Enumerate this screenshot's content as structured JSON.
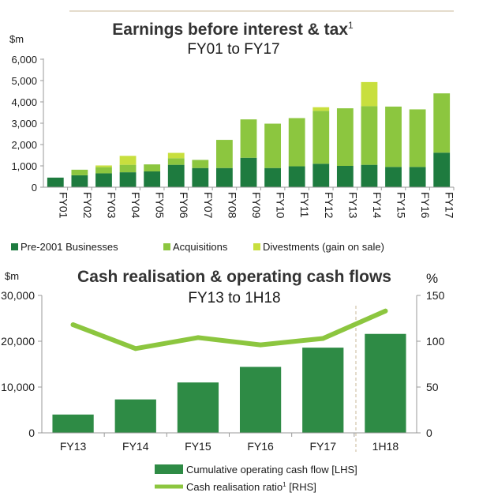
{
  "colors": {
    "pre2001": "#1e7b3f",
    "acquisitions": "#8cc63f",
    "divestments": "#c8df3e",
    "cash_bar": "#2e8b45",
    "ratio_line": "#8cc63f",
    "axis": "#999999",
    "divider": "#c8b89a"
  },
  "chart_data": [
    {
      "type": "bar",
      "stacked": true,
      "title": "Earnings before interest & tax",
      "title_superscript": "1",
      "subtitle": "FY01 to FY17",
      "ylabel": "$m",
      "ylim": [
        0,
        6000
      ],
      "yticks": [
        "0",
        "1,000",
        "2,000",
        "3,000",
        "4,000",
        "5,000",
        "6,000"
      ],
      "categories": [
        "FY01",
        "FY02",
        "FY03",
        "FY04",
        "FY05",
        "FY06",
        "FY07",
        "FY08",
        "FY09",
        "FY10",
        "FY11",
        "FY12",
        "FY13",
        "FY14",
        "FY15",
        "FY16",
        "FY17"
      ],
      "series": [
        {
          "name": "Pre-2001 Businesses",
          "values": [
            450,
            560,
            650,
            700,
            740,
            1050,
            900,
            900,
            1380,
            900,
            980,
            1100,
            1000,
            1050,
            950,
            950,
            1620
          ]
        },
        {
          "name": "Acquisitions",
          "values": [
            0,
            260,
            290,
            350,
            330,
            310,
            380,
            1320,
            1800,
            2080,
            2260,
            2480,
            2700,
            2750,
            2830,
            2700,
            2780
          ]
        },
        {
          "name": "Divestments (gain on sale)",
          "values": [
            0,
            0,
            80,
            420,
            0,
            250,
            0,
            0,
            0,
            0,
            0,
            170,
            0,
            1130,
            0,
            0,
            0
          ]
        }
      ],
      "legend_position": "bottom"
    },
    {
      "type": "bar+line",
      "title": "Cash realisation & operating cash flows",
      "subtitle": "FY13 to 1H18",
      "ylabel_left": "$m",
      "ylabel_right": "%",
      "ylim_left": [
        0,
        30000
      ],
      "ylim_right": [
        0,
        150
      ],
      "yticks_left": [
        "0",
        "10,000",
        "20,000",
        "30,000"
      ],
      "yticks_right": [
        "0",
        "50",
        "100",
        "150"
      ],
      "categories": [
        "FY13",
        "FY14",
        "FY15",
        "FY16",
        "FY17",
        "1H18"
      ],
      "series": [
        {
          "name": "Cumulative operating cash flow [LHS]",
          "type": "bar",
          "axis": "left",
          "values": [
            4000,
            7300,
            11000,
            14400,
            18600,
            21600
          ]
        },
        {
          "name": "Cash realisation ratio",
          "name_superscript": "1",
          "name_suffix": " [RHS]",
          "type": "line",
          "axis": "right",
          "values": [
            118,
            92,
            104,
            96,
            103,
            133
          ]
        }
      ],
      "legend_position": "bottom-right"
    }
  ]
}
